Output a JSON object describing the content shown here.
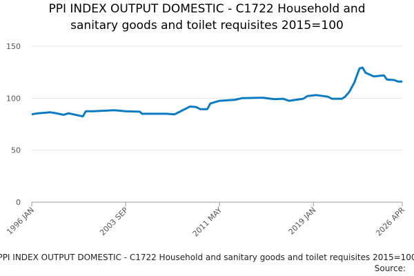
{
  "chart_data": {
    "type": "line",
    "title_lines": [
      "PPI INDEX OUTPUT DOMESTIC - C1722 Household and",
      "sanitary goods and toilet requisites 2015=100"
    ],
    "title": "PPI INDEX OUTPUT DOMESTIC - C1722 Household and sanitary goods and toilet requisites 2015=100",
    "source_label": "Source:",
    "x": [
      "1996 JAN",
      "1996 JUL",
      "1997 JUL",
      "1998 JAN",
      "1998 AUG",
      "1999 JAN",
      "2000 MAR",
      "2000 JUN",
      "2001 JAN",
      "2002 OCT",
      "2003 SEP",
      "2004 NOV",
      "2005 JAN",
      "2007 JAN",
      "2007 SEP",
      "2008 DEC",
      "2009 JUN",
      "2009 OCT",
      "2010 MAY",
      "2010 AUG",
      "2011 MAY",
      "2012 AUG",
      "2013 MAR",
      "2014 NOV",
      "2015 NOV",
      "2016 JUL",
      "2017 JAN",
      "2018 MAR",
      "2018 JUL",
      "2019 APR",
      "2020 MAR",
      "2020 JUL",
      "2021 MAY",
      "2021 AUG",
      "2021 DEC",
      "2022 MAY",
      "2022 OCT",
      "2023 JAN",
      "2023 APR",
      "2023 DEC",
      "2024 OCT",
      "2025 JAN",
      "2025 AUG",
      "2025 DEC",
      "2026 APR"
    ],
    "series": [
      {
        "name": "PPI INDEX OUTPUT DOMESTIC - C1722",
        "color": "#0b7bc1",
        "values": [
          84.5,
          85.5,
          86.5,
          85.5,
          84,
          85.5,
          82.5,
          87.5,
          87.5,
          88.5,
          87.5,
          87,
          85,
          85,
          84.5,
          92,
          91.5,
          89.5,
          89.5,
          95,
          97.5,
          98.5,
          100,
          100.5,
          99,
          99.5,
          97.5,
          99.5,
          102,
          103,
          101.5,
          99.5,
          99.5,
          101.5,
          106,
          115,
          128.5,
          129.5,
          124.5,
          121,
          122,
          118,
          117.5,
          116,
          116
        ]
      }
    ],
    "xlim": [
      "1996 JAN",
      "2026 APR"
    ],
    "xticks": [
      "1996 JAN",
      "2003 SEP",
      "2011 MAY",
      "2019 JAN",
      "2026 APR"
    ],
    "ylim": [
      0,
      150
    ],
    "yticks": [
      0,
      50,
      100,
      150
    ],
    "grid": true
  }
}
